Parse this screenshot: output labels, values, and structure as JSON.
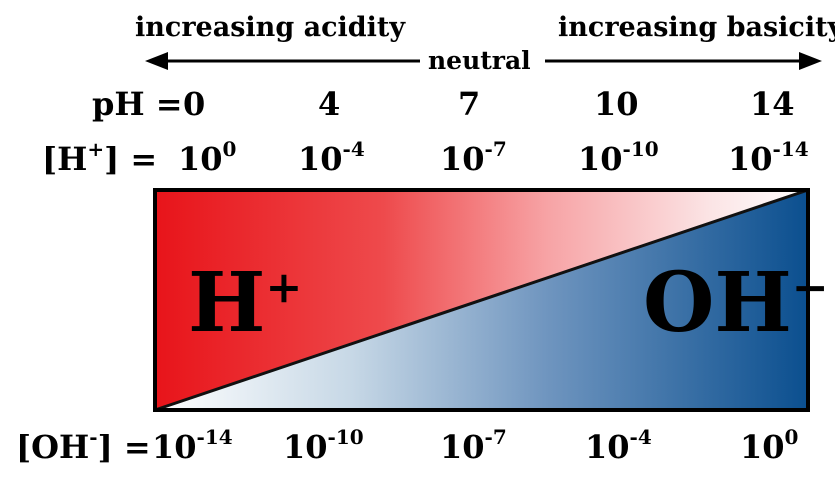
{
  "labels": {
    "increasing_acidity": "increasing acidity",
    "increasing_basicity": "increasing basicity",
    "neutral": "neutral"
  },
  "ph_row": {
    "label": "pH =",
    "values": [
      "0",
      "4",
      "7",
      "10",
      "14"
    ]
  },
  "h_row": {
    "label_start": "[H",
    "label_sup": "+",
    "label_end": "] =",
    "base": "10",
    "exponents": [
      "0",
      "-4",
      "-7",
      "-10",
      "-14"
    ]
  },
  "oh_row": {
    "label_start": "[OH",
    "label_sup": "-",
    "label_end": "] =",
    "base": "10",
    "exponents": [
      "-14",
      "-10",
      "-7",
      "-4",
      "0"
    ]
  },
  "box": {
    "h_label": "H",
    "h_sup": "+",
    "oh_label": "OH",
    "oh_sup": "−"
  },
  "colors": {
    "acid": "#e8141a",
    "base": "#0b4f8f",
    "neutral": "#ffffff"
  }
}
